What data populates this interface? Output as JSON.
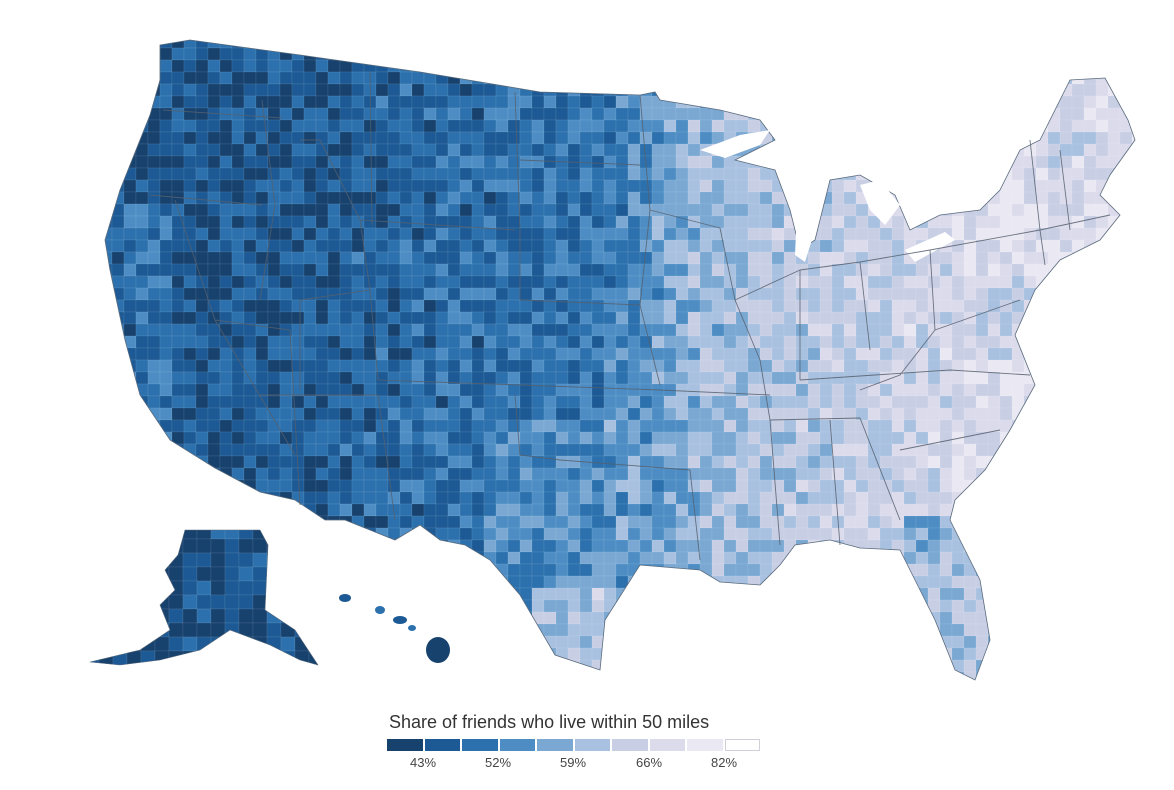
{
  "legend": {
    "title": "Share of friends who live within 50 miles",
    "colors": [
      "#17426e",
      "#1d5a95",
      "#2c71ad",
      "#4d8dc4",
      "#7aa8d2",
      "#a9c1e0",
      "#c8cfe5",
      "#dcdbec",
      "#eae8f2",
      "#ffffff"
    ],
    "ticks": [
      "43%",
      "52%",
      "59%",
      "66%",
      "82%"
    ]
  },
  "map": {
    "regions": [
      "Alaska",
      "Hawaii",
      "Contiguous United States"
    ],
    "pattern": "dark blue in the West and Great Plains, lighter toward the Midwest, Appalachia, Southeast and Northeast"
  }
}
